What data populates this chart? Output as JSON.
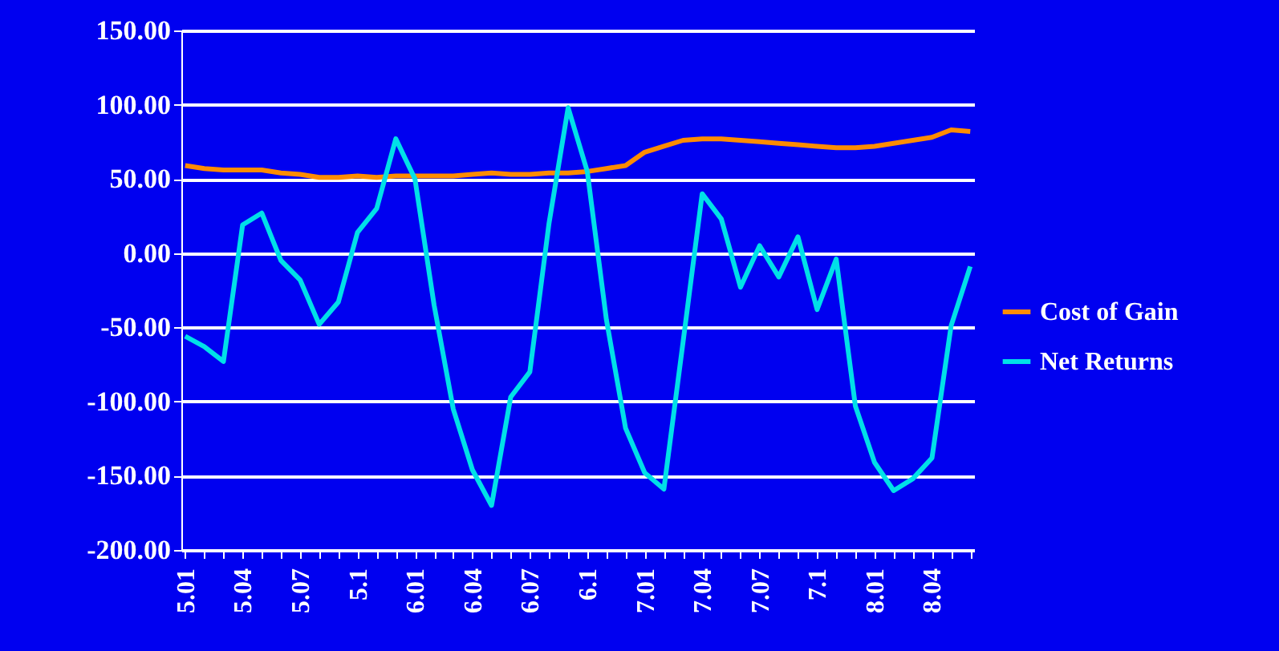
{
  "chart_data": {
    "type": "line",
    "categories": [
      "5.01",
      null,
      null,
      "5.04",
      null,
      null,
      "5.07",
      null,
      null,
      "5.1",
      null,
      null,
      "6.01",
      null,
      null,
      "6.04",
      null,
      null,
      "6.07",
      null,
      null,
      "6.1",
      null,
      null,
      "7.01",
      null,
      null,
      "7.04",
      null,
      null,
      "7.07",
      null,
      null,
      "7.1",
      null,
      null,
      "8.01",
      null,
      null,
      "8.04",
      null,
      null
    ],
    "series": [
      {
        "name": "Cost of Gain",
        "color": "#ff8c00",
        "values": [
          59,
          57,
          56,
          56,
          56,
          54,
          53,
          51,
          51,
          52,
          51,
          52,
          52,
          52,
          52,
          53,
          54,
          53,
          53,
          54,
          54,
          55,
          57,
          59,
          68,
          72,
          76,
          77,
          77,
          76,
          75,
          74,
          73,
          72,
          71,
          71,
          72,
          74,
          76,
          78,
          83,
          82
        ]
      },
      {
        "name": "Net Returns",
        "color": "#00e0e8",
        "values": [
          -56,
          -63,
          -73,
          19,
          27,
          -5,
          -18,
          -48,
          -33,
          14,
          30,
          77,
          50,
          -35,
          -105,
          -146,
          -170,
          -97,
          -80,
          20,
          98,
          55,
          -45,
          -118,
          -148,
          -159,
          -60,
          40,
          23,
          -23,
          5,
          -16,
          11,
          -38,
          -4,
          -103,
          -141,
          -160,
          -152,
          -138,
          -49,
          -9
        ]
      }
    ],
    "ylim": [
      -200,
      150
    ],
    "yticks": [
      {
        "value": -200,
        "label": "-200.00"
      },
      {
        "value": -150,
        "label": "-150.00"
      },
      {
        "value": -100,
        "label": "-100.00"
      },
      {
        "value": -50,
        "label": "-50.00"
      },
      {
        "value": 0,
        "label": "0.00"
      },
      {
        "value": 50,
        "label": "50.00"
      },
      {
        "value": 100,
        "label": "100.00"
      },
      {
        "value": 150,
        "label": "150.00"
      }
    ],
    "grid": "y",
    "legend": "right",
    "marker": "none",
    "line_style": "solid"
  }
}
